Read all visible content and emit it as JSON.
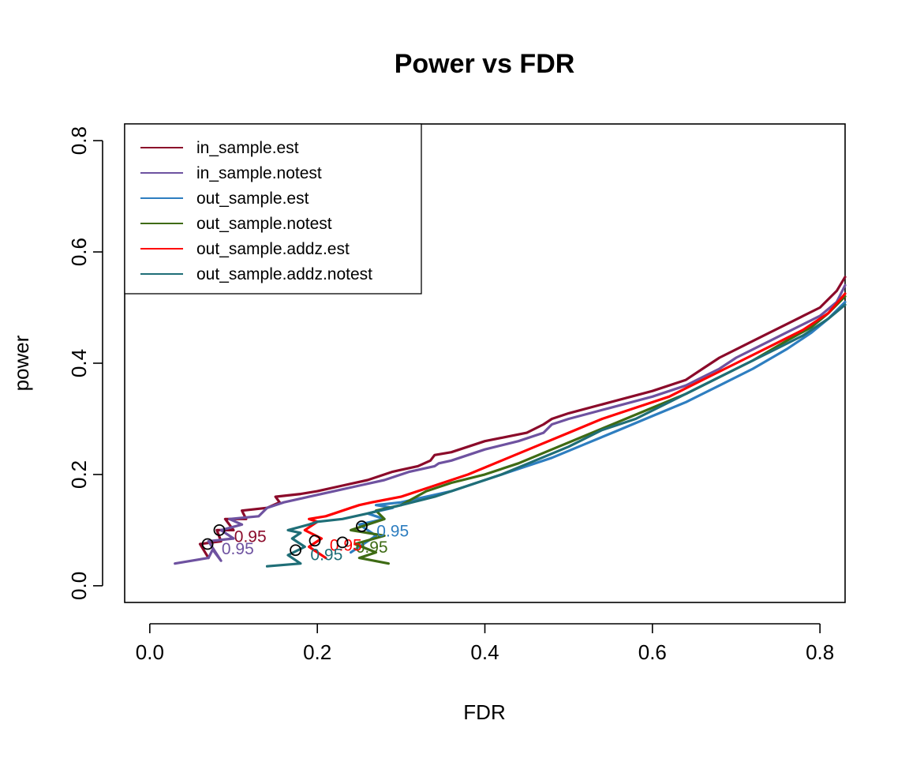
{
  "chart_data": {
    "type": "line",
    "title": "Power vs FDR",
    "xlabel": "FDR",
    "ylabel": "power",
    "xlim": [
      -0.03,
      0.83
    ],
    "ylim": [
      -0.03,
      0.83
    ],
    "x_ticks": [
      "0.0",
      "0.2",
      "0.4",
      "0.6",
      "0.8"
    ],
    "y_ticks": [
      "0.0",
      "0.2",
      "0.4",
      "0.6",
      "0.8"
    ],
    "grid": false,
    "legend_position": "top-left",
    "series": [
      {
        "name": "in_sample.est",
        "color": "#8B0A2A",
        "x": [
          0.07,
          0.06,
          0.085,
          0.08,
          0.1,
          0.09,
          0.115,
          0.11,
          0.14,
          0.155,
          0.15,
          0.18,
          0.2,
          0.23,
          0.26,
          0.29,
          0.32,
          0.335,
          0.34,
          0.36,
          0.4,
          0.45,
          0.47,
          0.48,
          0.5,
          0.55,
          0.6,
          0.64,
          0.66,
          0.68,
          0.7,
          0.72,
          0.74,
          0.76,
          0.78,
          0.8,
          0.82,
          0.83
        ],
        "y": [
          0.05,
          0.075,
          0.08,
          0.1,
          0.1,
          0.12,
          0.12,
          0.135,
          0.14,
          0.15,
          0.16,
          0.165,
          0.17,
          0.18,
          0.19,
          0.205,
          0.215,
          0.225,
          0.235,
          0.24,
          0.26,
          0.275,
          0.29,
          0.3,
          0.31,
          0.33,
          0.35,
          0.37,
          0.39,
          0.41,
          0.425,
          0.44,
          0.455,
          0.47,
          0.485,
          0.5,
          0.53,
          0.555
        ]
      },
      {
        "name": "in_sample.notest",
        "color": "#6E52A0",
        "x": [
          0.03,
          0.07,
          0.075,
          0.085,
          0.07,
          0.1,
          0.085,
          0.11,
          0.095,
          0.13,
          0.14,
          0.16,
          0.19,
          0.22,
          0.25,
          0.28,
          0.31,
          0.34,
          0.345,
          0.36,
          0.4,
          0.44,
          0.47,
          0.48,
          0.5,
          0.55,
          0.6,
          0.64,
          0.66,
          0.68,
          0.7,
          0.72,
          0.74,
          0.76,
          0.78,
          0.8,
          0.82,
          0.83
        ],
        "y": [
          0.04,
          0.05,
          0.065,
          0.045,
          0.08,
          0.085,
          0.1,
          0.11,
          0.12,
          0.125,
          0.14,
          0.15,
          0.16,
          0.17,
          0.18,
          0.19,
          0.205,
          0.215,
          0.22,
          0.225,
          0.245,
          0.26,
          0.275,
          0.29,
          0.3,
          0.32,
          0.34,
          0.36,
          0.375,
          0.39,
          0.41,
          0.425,
          0.44,
          0.455,
          0.47,
          0.485,
          0.51,
          0.54
        ]
      },
      {
        "name": "out_sample.est",
        "color": "#2E7EC0",
        "x": [
          0.24,
          0.27,
          0.25,
          0.28,
          0.26,
          0.29,
          0.27,
          0.3,
          0.33,
          0.36,
          0.4,
          0.44,
          0.48,
          0.52,
          0.56,
          0.6,
          0.64,
          0.68,
          0.72,
          0.76,
          0.79,
          0.81,
          0.83
        ],
        "y": [
          0.06,
          0.09,
          0.11,
          0.12,
          0.13,
          0.14,
          0.145,
          0.15,
          0.16,
          0.17,
          0.19,
          0.21,
          0.23,
          0.255,
          0.28,
          0.305,
          0.33,
          0.36,
          0.39,
          0.425,
          0.455,
          0.48,
          0.51
        ]
      },
      {
        "name": "out_sample.notest",
        "color": "#3E6B14",
        "x": [
          0.285,
          0.25,
          0.27,
          0.245,
          0.28,
          0.24,
          0.26,
          0.28,
          0.27,
          0.3,
          0.33,
          0.36,
          0.4,
          0.44,
          0.48,
          0.52,
          0.56,
          0.6,
          0.64,
          0.68,
          0.72,
          0.76,
          0.79,
          0.81,
          0.83
        ],
        "y": [
          0.04,
          0.05,
          0.06,
          0.075,
          0.09,
          0.1,
          0.11,
          0.12,
          0.135,
          0.145,
          0.17,
          0.185,
          0.2,
          0.22,
          0.245,
          0.27,
          0.295,
          0.32,
          0.345,
          0.375,
          0.405,
          0.44,
          0.465,
          0.49,
          0.52
        ]
      },
      {
        "name": "out_sample.addz.est",
        "color": "#FF0000",
        "x": [
          0.21,
          0.19,
          0.205,
          0.185,
          0.2,
          0.19,
          0.21,
          0.22,
          0.24,
          0.25,
          0.265,
          0.3,
          0.34,
          0.38,
          0.42,
          0.46,
          0.5,
          0.54,
          0.58,
          0.62,
          0.66,
          0.7,
          0.74,
          0.78,
          0.81,
          0.83
        ],
        "y": [
          0.05,
          0.07,
          0.085,
          0.1,
          0.115,
          0.12,
          0.125,
          0.13,
          0.14,
          0.145,
          0.15,
          0.16,
          0.18,
          0.2,
          0.225,
          0.25,
          0.275,
          0.3,
          0.32,
          0.34,
          0.37,
          0.4,
          0.43,
          0.46,
          0.49,
          0.525
        ]
      },
      {
        "name": "out_sample.addz.notest",
        "color": "#1F6E77",
        "x": [
          0.14,
          0.18,
          0.165,
          0.185,
          0.17,
          0.18,
          0.165,
          0.19,
          0.2,
          0.23,
          0.26,
          0.3,
          0.34,
          0.38,
          0.42,
          0.46,
          0.5,
          0.54,
          0.58,
          0.62,
          0.66,
          0.7,
          0.74,
          0.78,
          0.81,
          0.83
        ],
        "y": [
          0.035,
          0.04,
          0.055,
          0.07,
          0.085,
          0.095,
          0.1,
          0.11,
          0.115,
          0.12,
          0.13,
          0.145,
          0.16,
          0.18,
          0.2,
          0.225,
          0.25,
          0.28,
          0.3,
          0.33,
          0.36,
          0.39,
          0.42,
          0.45,
          0.48,
          0.505
        ]
      }
    ],
    "annotations": [
      {
        "label": "0.95",
        "color": "#8B0A2A",
        "point": {
          "x": 0.083,
          "y": 0.1
        },
        "text_at": {
          "x": 0.12,
          "y": 0.09
        }
      },
      {
        "label": "0.95",
        "color": "#6E52A0",
        "point": {
          "x": 0.069,
          "y": 0.075
        },
        "text_at": {
          "x": 0.105,
          "y": 0.068
        }
      },
      {
        "label": "0.95",
        "color": "#2E7EC0",
        "point": {
          "x": 0.253,
          "y": 0.107
        },
        "text_at": {
          "x": 0.29,
          "y": 0.1
        }
      },
      {
        "label": "0.95",
        "color": "#3E6B14",
        "point": {
          "x": 0.23,
          "y": 0.078
        },
        "text_at": {
          "x": 0.265,
          "y": 0.071
        }
      },
      {
        "label": "0.95",
        "color": "#FF0000",
        "point": {
          "x": 0.197,
          "y": 0.081
        },
        "text_at": {
          "x": 0.234,
          "y": 0.074
        }
      },
      {
        "label": "0.95",
        "color": "#1F6E77",
        "point": {
          "x": 0.174,
          "y": 0.064
        },
        "text_at": {
          "x": 0.211,
          "y": 0.057
        }
      }
    ]
  }
}
